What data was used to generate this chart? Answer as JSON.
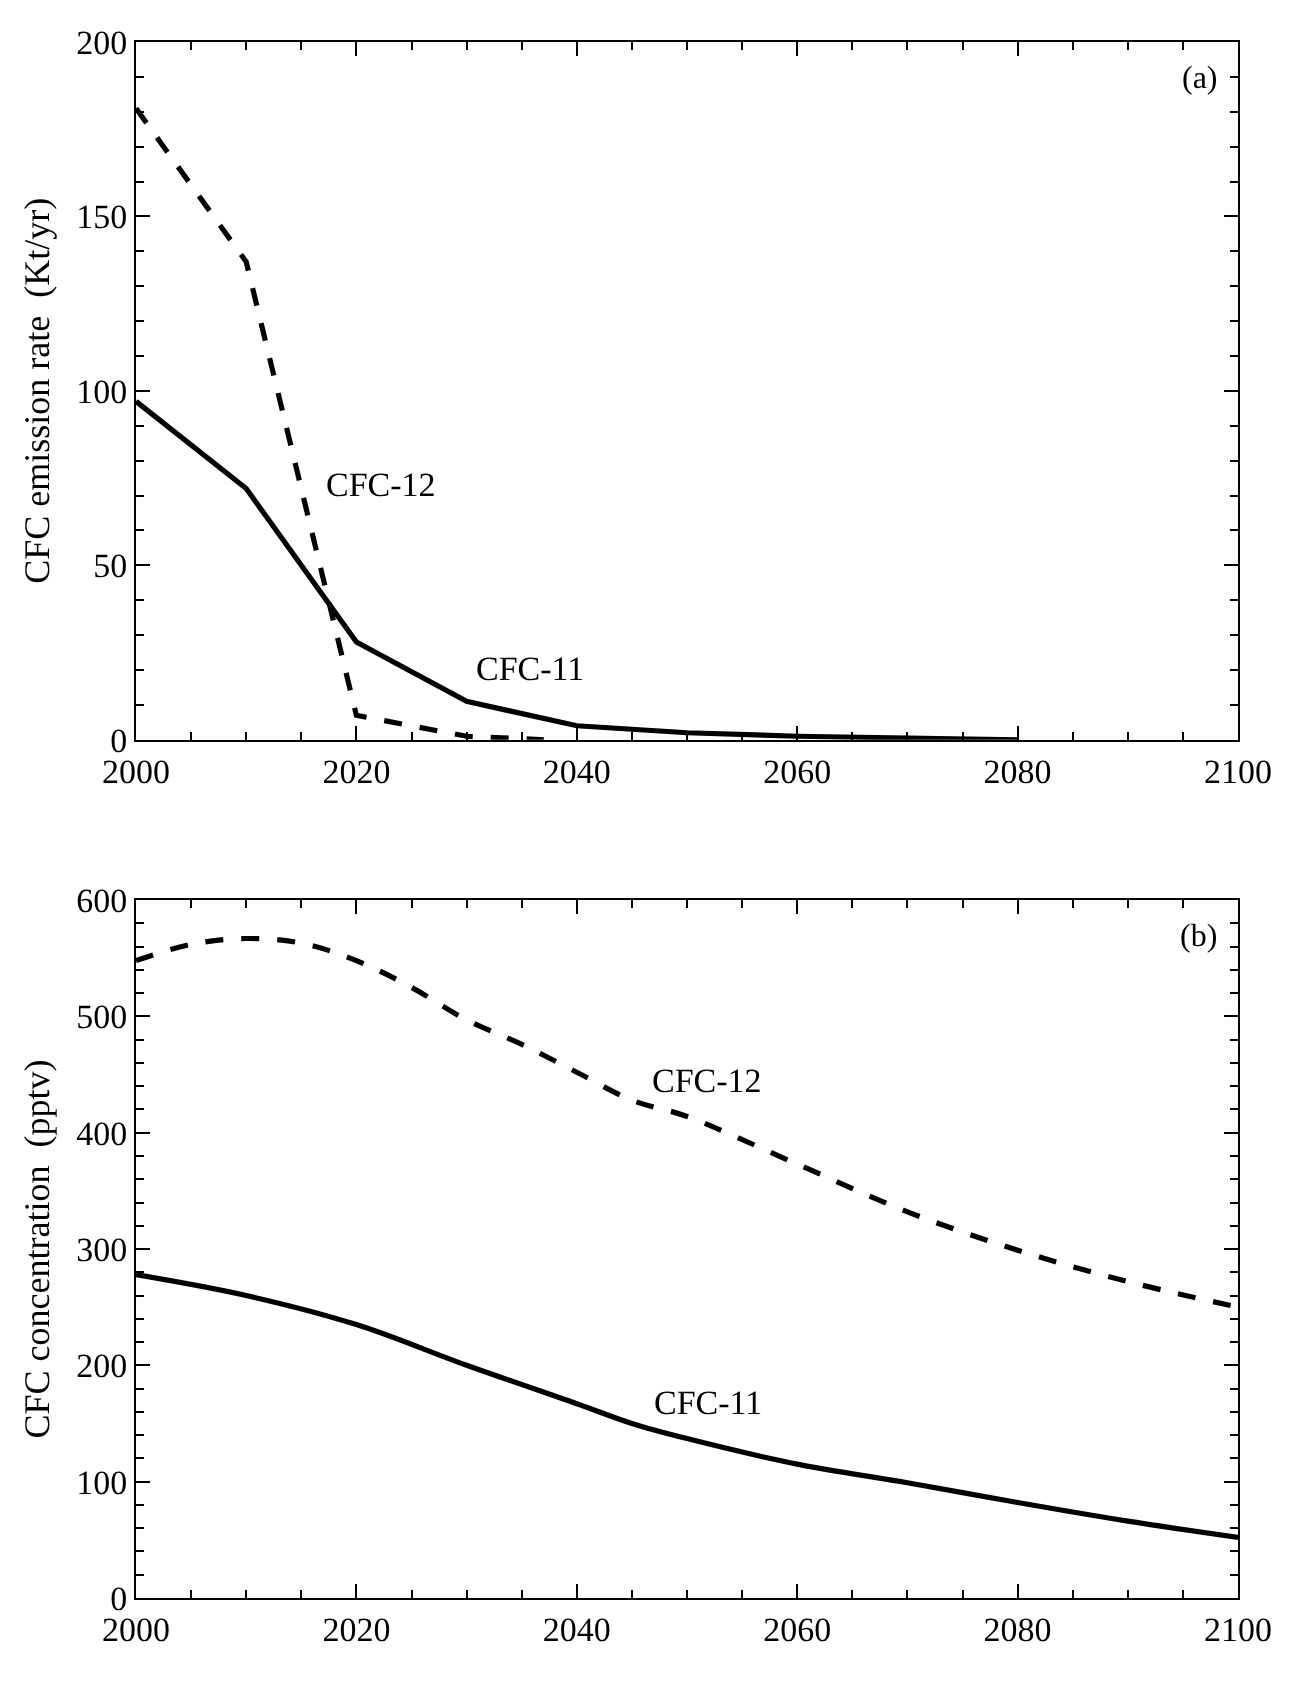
{
  "chart_data": [
    {
      "type": "line",
      "ylabel": "CFC emission rate  (Kt/yr)",
      "xlim": [
        2000,
        2100
      ],
      "xticks": [
        2000,
        2020,
        2040,
        2060,
        2080,
        2100
      ],
      "ylim": [
        0,
        200
      ],
      "yticks": [
        0,
        50,
        100,
        150,
        200
      ],
      "series": [
        {
          "name": "CFC-12",
          "color": "#000000",
          "line_style": "dashed",
          "x": [
            2000,
            2010,
            2020,
            2030,
            2037
          ],
          "values": [
            181,
            137,
            7,
            1,
            0
          ]
        },
        {
          "name": "CFC-11",
          "color": "#000000",
          "line_style": "solid",
          "x": [
            2000,
            2010,
            2020,
            2030,
            2040,
            2050,
            2060,
            2070,
            2080
          ],
          "values": [
            97,
            72,
            28,
            11,
            4,
            2,
            1,
            0.5,
            0
          ]
        }
      ],
      "annotations": [
        "(a)"
      ]
    },
    {
      "type": "line",
      "ylabel": "CFC concentration  (pptv)",
      "xlim": [
        2000,
        2100
      ],
      "xticks": [
        2000,
        2020,
        2040,
        2060,
        2080,
        2100
      ],
      "ylim": [
        0,
        600
      ],
      "yticks": [
        0,
        100,
        200,
        300,
        400,
        500,
        600
      ],
      "series": [
        {
          "name": "CFC-12",
          "color": "#000000",
          "line_style": "dashed",
          "x": [
            2000,
            2005,
            2010,
            2015,
            2020,
            2025,
            2030,
            2035,
            2040,
            2045,
            2050,
            2060,
            2070,
            2080,
            2090,
            2100
          ],
          "values": [
            548,
            562,
            567,
            563,
            548,
            525,
            497,
            476,
            452,
            428,
            414,
            373,
            332,
            299,
            272,
            250
          ]
        },
        {
          "name": "CFC-11",
          "color": "#000000",
          "line_style": "solid",
          "x": [
            2000,
            2010,
            2020,
            2030,
            2040,
            2045,
            2050,
            2060,
            2070,
            2080,
            2090,
            2100
          ],
          "values": [
            278,
            260,
            235,
            200,
            167,
            150,
            137,
            115,
            99,
            82,
            66,
            52
          ]
        }
      ],
      "annotations": [
        "(b)"
      ]
    }
  ]
}
